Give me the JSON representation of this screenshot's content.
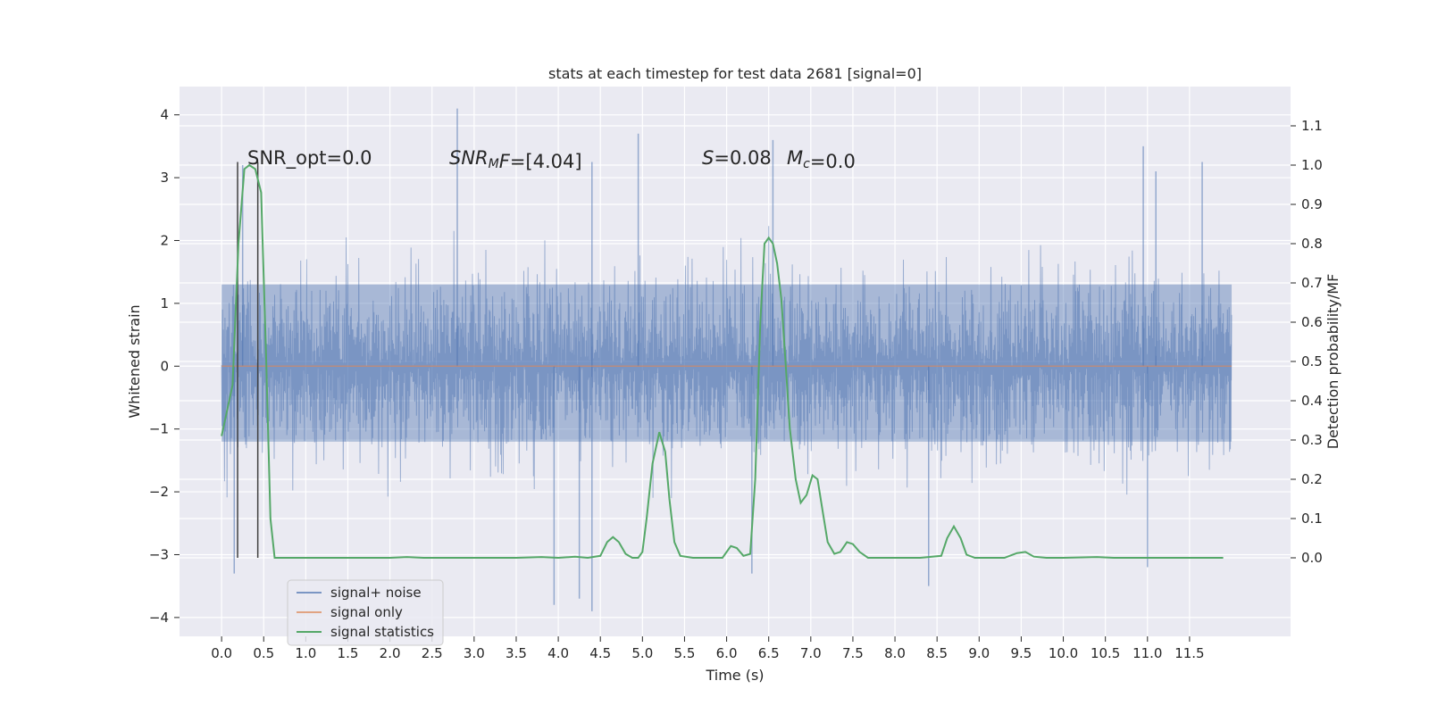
{
  "chart_data": {
    "type": "line",
    "title": "stats at each timestep for test data 2681 [signal=0]",
    "xlabel": "Time (s)",
    "ylabel_left": "Whitened strain",
    "ylabel_right": "Detection probability/MF",
    "xlim": [
      -0.5,
      12.7
    ],
    "ylim_left": [
      -4.3,
      4.45
    ],
    "ylim_right": [
      -0.2,
      1.2
    ],
    "x_ticks": [
      "0.0",
      "0.5",
      "1.0",
      "1.5",
      "2.0",
      "2.5",
      "3.0",
      "3.5",
      "4.0",
      "4.5",
      "5.0",
      "5.5",
      "6.0",
      "6.5",
      "7.0",
      "7.5",
      "8.0",
      "8.5",
      "9.0",
      "9.5",
      "10.0",
      "10.5",
      "11.0",
      "11.5"
    ],
    "y_ticks_left": [
      "−4",
      "−3",
      "−2",
      "−1",
      "0",
      "1",
      "2",
      "3",
      "4"
    ],
    "y_ticks_right": [
      "0.0",
      "0.1",
      "0.2",
      "0.3",
      "0.4",
      "0.5",
      "0.6",
      "0.7",
      "0.8",
      "0.9",
      "1.0",
      "1.1"
    ],
    "grid": true,
    "legend_position": "bottom-left",
    "series": [
      {
        "name": "signal+ noise",
        "color": "#4c72b0",
        "x_range": [
          0,
          12.0
        ],
        "description_values": {
          "core_band": [
            -1.2,
            1.3
          ],
          "typical_peaks": [
            -2.5,
            2.5
          ],
          "max": 4.1,
          "min": -3.9
        },
        "outlier_spikes": [
          {
            "x": 2.8,
            "y": 4.1
          },
          {
            "x": 4.95,
            "y": 3.7
          },
          {
            "x": 6.55,
            "y": 3.6
          },
          {
            "x": 10.95,
            "y": 3.5
          },
          {
            "x": 0.25,
            "y": 3.2
          },
          {
            "x": 4.4,
            "y": 3.25
          },
          {
            "x": 11.65,
            "y": 3.25
          },
          {
            "x": 11.1,
            "y": 3.1
          },
          {
            "x": 0.15,
            "y": -3.3
          },
          {
            "x": 3.95,
            "y": -3.8
          },
          {
            "x": 4.4,
            "y": -3.9
          },
          {
            "x": 4.25,
            "y": -3.7
          },
          {
            "x": 8.4,
            "y": -3.5
          },
          {
            "x": 11.0,
            "y": -3.2
          },
          {
            "x": 6.3,
            "y": -3.3
          }
        ]
      },
      {
        "name": "signal only",
        "color": "#dd8452",
        "values_constant": 0.0
      },
      {
        "name": "signal statistics",
        "color": "#55a868",
        "points": [
          [
            0.0,
            0.31
          ],
          [
            0.13,
            0.44
          ],
          [
            0.2,
            0.8
          ],
          [
            0.27,
            0.99
          ],
          [
            0.33,
            1.0
          ],
          [
            0.4,
            0.99
          ],
          [
            0.47,
            0.93
          ],
          [
            0.53,
            0.5
          ],
          [
            0.58,
            0.1
          ],
          [
            0.63,
            0.0
          ],
          [
            0.7,
            0.0
          ],
          [
            1.0,
            0.0
          ],
          [
            1.5,
            0.0
          ],
          [
            2.0,
            0.0
          ],
          [
            2.2,
            0.002
          ],
          [
            2.4,
            0.0
          ],
          [
            3.0,
            0.0
          ],
          [
            3.5,
            0.0
          ],
          [
            3.8,
            0.002
          ],
          [
            4.0,
            0.0
          ],
          [
            4.2,
            0.003
          ],
          [
            4.35,
            0.0
          ],
          [
            4.5,
            0.005
          ],
          [
            4.58,
            0.04
          ],
          [
            4.65,
            0.053
          ],
          [
            4.72,
            0.04
          ],
          [
            4.8,
            0.01
          ],
          [
            4.88,
            0.0
          ],
          [
            4.95,
            0.0
          ],
          [
            5.0,
            0.015
          ],
          [
            5.05,
            0.1
          ],
          [
            5.12,
            0.24
          ],
          [
            5.2,
            0.32
          ],
          [
            5.27,
            0.27
          ],
          [
            5.32,
            0.15
          ],
          [
            5.38,
            0.04
          ],
          [
            5.45,
            0.005
          ],
          [
            5.6,
            0.0
          ],
          [
            5.95,
            0.0
          ],
          [
            6.05,
            0.03
          ],
          [
            6.12,
            0.025
          ],
          [
            6.2,
            0.005
          ],
          [
            6.28,
            0.01
          ],
          [
            6.34,
            0.2
          ],
          [
            6.4,
            0.6
          ],
          [
            6.45,
            0.8
          ],
          [
            6.5,
            0.815
          ],
          [
            6.55,
            0.8
          ],
          [
            6.6,
            0.75
          ],
          [
            6.65,
            0.66
          ],
          [
            6.7,
            0.5
          ],
          [
            6.75,
            0.33
          ],
          [
            6.82,
            0.2
          ],
          [
            6.88,
            0.14
          ],
          [
            6.95,
            0.16
          ],
          [
            7.02,
            0.21
          ],
          [
            7.08,
            0.2
          ],
          [
            7.14,
            0.12
          ],
          [
            7.2,
            0.04
          ],
          [
            7.28,
            0.01
          ],
          [
            7.35,
            0.015
          ],
          [
            7.43,
            0.04
          ],
          [
            7.5,
            0.035
          ],
          [
            7.58,
            0.015
          ],
          [
            7.68,
            0.0
          ],
          [
            8.0,
            0.0
          ],
          [
            8.3,
            0.0
          ],
          [
            8.55,
            0.005
          ],
          [
            8.62,
            0.05
          ],
          [
            8.7,
            0.08
          ],
          [
            8.78,
            0.05
          ],
          [
            8.85,
            0.008
          ],
          [
            8.95,
            0.0
          ],
          [
            9.3,
            0.0
          ],
          [
            9.45,
            0.012
          ],
          [
            9.55,
            0.015
          ],
          [
            9.65,
            0.003
          ],
          [
            9.8,
            0.0
          ],
          [
            10.0,
            0.0
          ],
          [
            10.4,
            0.002
          ],
          [
            10.6,
            0.0
          ],
          [
            11.0,
            0.0
          ],
          [
            11.6,
            0.0
          ],
          [
            11.9,
            0.0
          ]
        ]
      }
    ],
    "vertical_lines": [
      {
        "x": 0.19,
        "y_range": [
          -3.05,
          3.25
        ]
      },
      {
        "x": 0.43,
        "y_range": [
          -3.05,
          3.25
        ]
      }
    ],
    "annotations": [
      {
        "text": "SNR_opt=0.0"
      },
      {
        "segments": [
          {
            "text": "SNR",
            "italic": true
          },
          {
            "text": "M",
            "italic": true,
            "sub": true
          },
          {
            "text": "F",
            "italic": true
          },
          {
            "text": "=[4.04]"
          }
        ]
      },
      {
        "segments": [
          {
            "text": "S",
            "italic": true
          },
          {
            "text": "=0.08"
          }
        ]
      },
      {
        "segments": [
          {
            "text": "M",
            "italic": true
          },
          {
            "text": "c",
            "italic": true,
            "sub": true
          },
          {
            "text": "=0.0"
          }
        ]
      }
    ],
    "legend": [
      "signal+ noise",
      "signal only",
      "signal statistics"
    ],
    "colors": {
      "background": "#eaeaf2",
      "grid": "#ffffff",
      "vline": "#404040"
    }
  }
}
